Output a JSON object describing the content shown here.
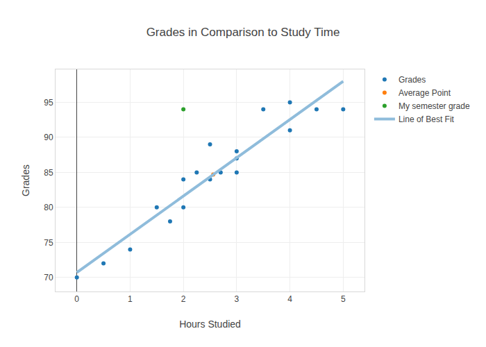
{
  "chart_data": {
    "type": "scatter",
    "title": "Grades in Comparison to Study Time",
    "x_label": "Hours Studied",
    "y_label": "Grades",
    "xlim": [
      -0.4,
      5.4
    ],
    "xticks": [
      0,
      1,
      2,
      3,
      4,
      5
    ],
    "ylim": [
      68,
      99.7
    ],
    "yticks": [
      70,
      75,
      80,
      85,
      90,
      95
    ],
    "grid": true,
    "legend": "right",
    "series": [
      {
        "name": "Grades",
        "type": "scatter",
        "marker": "circle",
        "color": "#1f77b4",
        "x": [
          0,
          0.5,
          1,
          1.5,
          1.75,
          2,
          2,
          2.25,
          2.5,
          2.5,
          2.7,
          3,
          3,
          3,
          3.5,
          4,
          4,
          4.5,
          5
        ],
        "values": [
          70,
          72,
          74,
          80,
          78,
          84,
          80,
          85,
          89,
          84,
          85,
          88,
          87,
          85,
          94,
          95,
          91,
          94,
          94
        ]
      },
      {
        "name": "Average Point",
        "type": "scatter",
        "marker": "circle",
        "color": "#ff7f0e",
        "x": [
          2.56
        ],
        "values": [
          84.7
        ]
      },
      {
        "name": "My semester grade",
        "type": "scatter",
        "marker": "circle",
        "color": "#2ca02c",
        "x": [
          2
        ],
        "values": [
          94
        ]
      },
      {
        "name": "Line of Best Fit",
        "type": "line",
        "line_style": "solid",
        "color": "#8fbcdb",
        "x": [
          0,
          5
        ],
        "values": [
          70.7,
          98
        ]
      }
    ]
  }
}
